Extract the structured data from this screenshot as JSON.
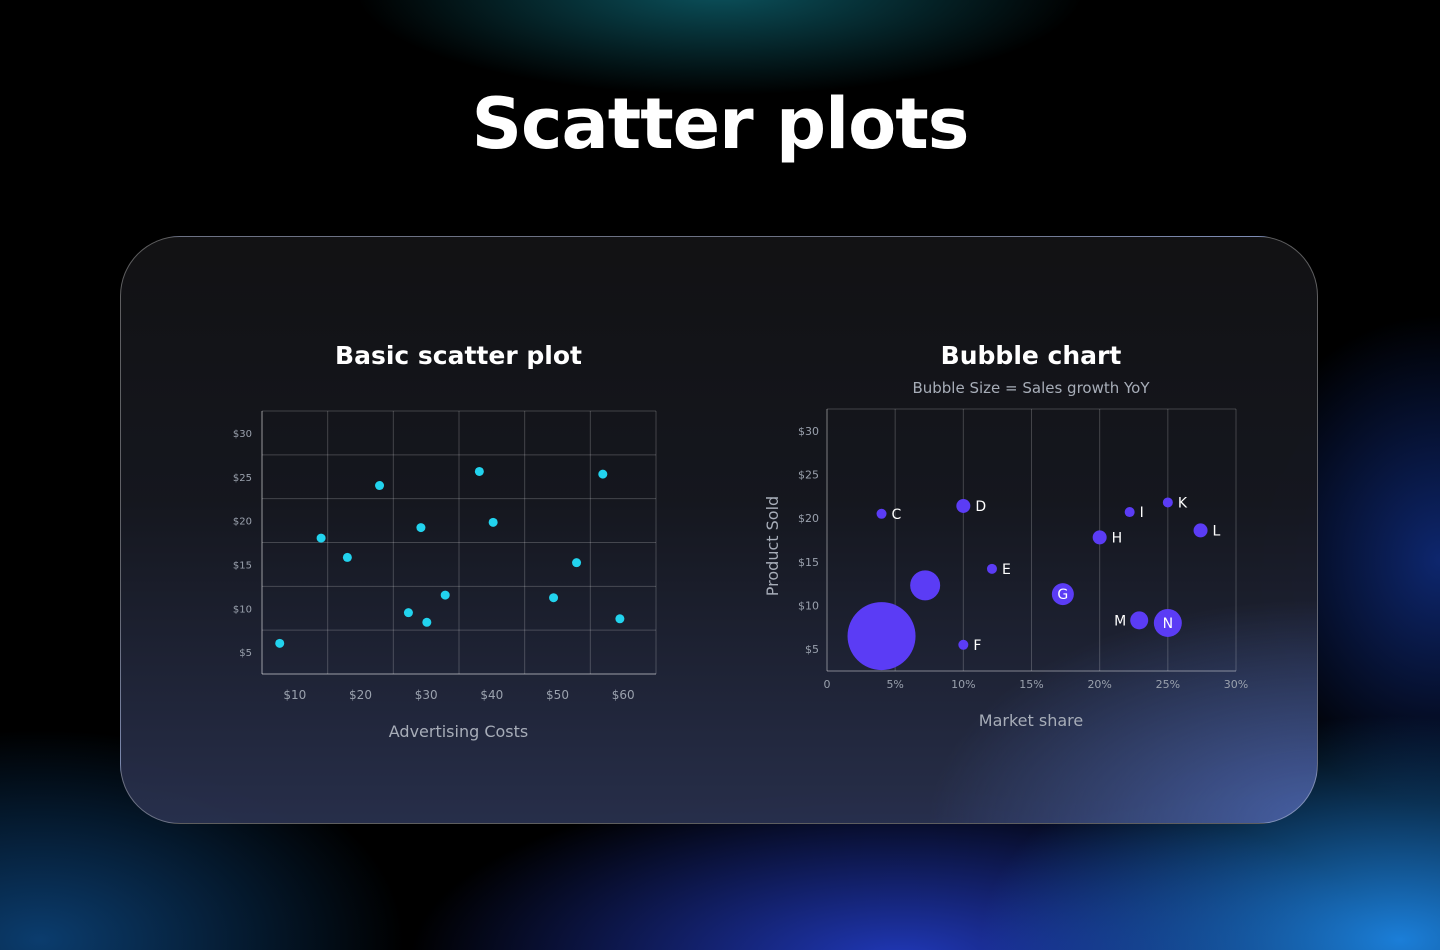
{
  "page": {
    "title": "Scatter plots"
  },
  "colors": {
    "scatter_point": "#22d3ee",
    "bubble": "#5b3cf5"
  },
  "chart_data": [
    {
      "type": "scatter",
      "title": "Basic scatter plot",
      "xlabel": "Advertising Costs",
      "ylabel": "",
      "x_ticks": [
        "$10",
        "$20",
        "$30",
        "$40",
        "$50",
        "$60"
      ],
      "y_ticks": [
        "$5",
        "$10",
        "$15",
        "$20",
        "$25",
        "$30"
      ],
      "xlim": [
        5,
        65
      ],
      "ylim": [
        2.5,
        32.5
      ],
      "grid": true,
      "points": [
        {
          "x": 7.7,
          "y": 6.0
        },
        {
          "x": 14.0,
          "y": 18.0
        },
        {
          "x": 18.0,
          "y": 15.8
        },
        {
          "x": 22.9,
          "y": 24.0
        },
        {
          "x": 27.3,
          "y": 9.5
        },
        {
          "x": 29.2,
          "y": 19.2
        },
        {
          "x": 30.1,
          "y": 8.4
        },
        {
          "x": 32.9,
          "y": 11.5
        },
        {
          "x": 38.1,
          "y": 25.6
        },
        {
          "x": 40.2,
          "y": 19.8
        },
        {
          "x": 49.4,
          "y": 11.2
        },
        {
          "x": 52.9,
          "y": 15.2
        },
        {
          "x": 56.9,
          "y": 25.3
        },
        {
          "x": 59.5,
          "y": 8.8
        }
      ]
    },
    {
      "type": "scatter",
      "title": "Bubble chart",
      "subtitle": "Bubble Size = Sales growth YoY",
      "xlabel": "Market share",
      "ylabel": "Product Sold",
      "x_ticks": [
        "0",
        "5%",
        "10%",
        "15%",
        "20%",
        "25%",
        "30%"
      ],
      "y_ticks": [
        "$5",
        "$10",
        "$15",
        "$20",
        "$25",
        "$30"
      ],
      "xlim": [
        0,
        30
      ],
      "ylim": [
        2.5,
        32.5
      ],
      "grid": true,
      "points": [
        {
          "label": "",
          "x": 4.0,
          "y": 6.5,
          "size": 34
        },
        {
          "label": "",
          "x": 7.2,
          "y": 12.3,
          "size": 15
        },
        {
          "label": "C",
          "x": 4.0,
          "y": 20.5,
          "size": 5
        },
        {
          "label": "D",
          "x": 10.0,
          "y": 21.4,
          "size": 7
        },
        {
          "label": "E",
          "x": 12.1,
          "y": 14.2,
          "size": 5
        },
        {
          "label": "F",
          "x": 10.0,
          "y": 5.5,
          "size": 5
        },
        {
          "label": "G",
          "x": 17.3,
          "y": 11.3,
          "size": 11
        },
        {
          "label": "H",
          "x": 20.0,
          "y": 17.8,
          "size": 7
        },
        {
          "label": "I",
          "x": 22.2,
          "y": 20.7,
          "size": 5
        },
        {
          "label": "K",
          "x": 25.0,
          "y": 21.8,
          "size": 5
        },
        {
          "label": "L",
          "x": 27.4,
          "y": 18.6,
          "size": 7
        },
        {
          "label": "M",
          "x": 22.9,
          "y": 8.3,
          "size": 9
        },
        {
          "label": "N",
          "x": 25.0,
          "y": 8.0,
          "size": 14
        }
      ]
    }
  ]
}
